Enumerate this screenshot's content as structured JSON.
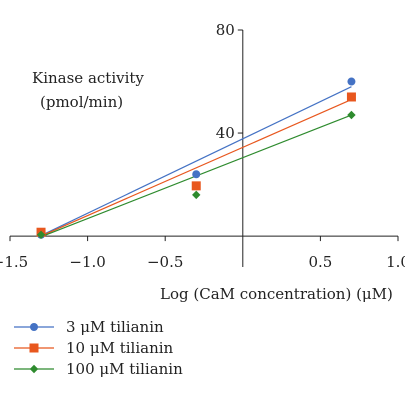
{
  "chart_data": {
    "type": "scatter",
    "title": "",
    "ylabel_line1": "Kinase activity",
    "ylabel_line2": "(pmol/min)",
    "xlabel": "Log (CaM concentration) (μM)",
    "xlim": [
      -1.5,
      1.0
    ],
    "ylim": [
      -12,
      80
    ],
    "x_ticks": [
      -1.5,
      -1.0,
      -0.5,
      0.5,
      1.0
    ],
    "x_tick_labels": [
      "−1.5",
      "−1.0",
      "−0.5",
      "0.5",
      "1.0"
    ],
    "y_ticks": [
      40,
      80
    ],
    "y_tick_labels": [
      "40",
      "80"
    ],
    "legend_position": "bottom-left",
    "series": [
      {
        "name": "3 μM tilianin",
        "color": "#4472c4",
        "marker": "circle",
        "points": [
          [
            -1.3,
            0.5
          ],
          [
            -0.3,
            24
          ],
          [
            0.7,
            60
          ]
        ],
        "fit": [
          [
            -1.3,
            0.2
          ],
          [
            0.7,
            58
          ]
        ]
      },
      {
        "name": "10 μM tilianin",
        "color": "#e8571e",
        "marker": "square",
        "points": [
          [
            -1.3,
            1.5
          ],
          [
            -0.3,
            19.5
          ],
          [
            0.7,
            54
          ]
        ],
        "fit": [
          [
            -1.3,
            0.0
          ],
          [
            0.7,
            53
          ]
        ]
      },
      {
        "name": "100 μM tilianin",
        "color": "#2e8b2e",
        "marker": "diamond",
        "points": [
          [
            -1.3,
            0.5
          ],
          [
            -0.3,
            16
          ],
          [
            0.7,
            47
          ]
        ],
        "fit": [
          [
            -1.3,
            -0.3
          ],
          [
            0.7,
            47
          ]
        ]
      }
    ]
  }
}
